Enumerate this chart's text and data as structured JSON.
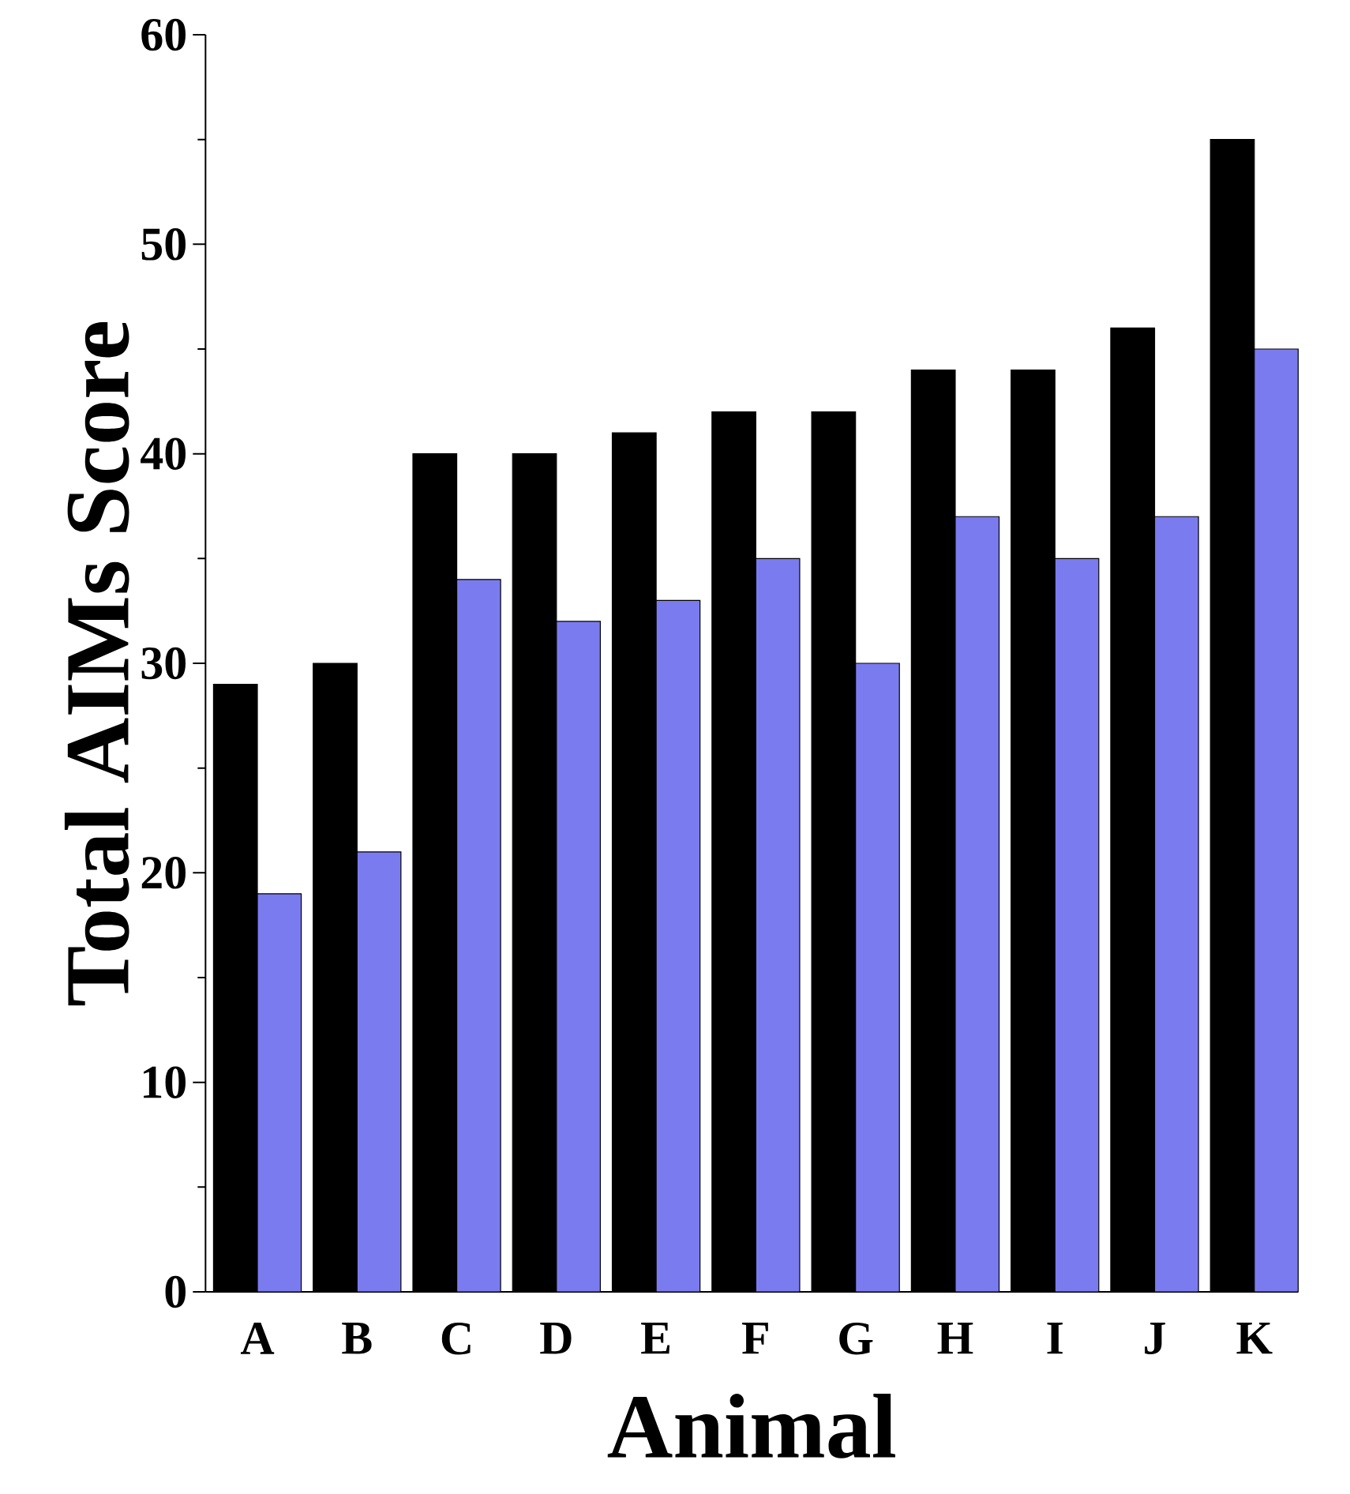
{
  "chart_data": {
    "type": "bar",
    "xlabel": "Animal",
    "ylabel": "Total AIMs Score",
    "categories": [
      "A",
      "B",
      "C",
      "D",
      "E",
      "F",
      "G",
      "H",
      "I",
      "J",
      "K"
    ],
    "series": [
      {
        "color": "#000000",
        "values": [
          29,
          30,
          40,
          40,
          41,
          42,
          42,
          44,
          44,
          46,
          55
        ]
      },
      {
        "color": "#7b7bf0",
        "values": [
          19,
          21,
          34,
          32,
          33,
          35,
          30,
          37,
          35,
          37,
          45
        ]
      }
    ],
    "ylim": [
      0,
      60
    ],
    "yticks": [
      0,
      10,
      20,
      30,
      40,
      50,
      60
    ]
  }
}
